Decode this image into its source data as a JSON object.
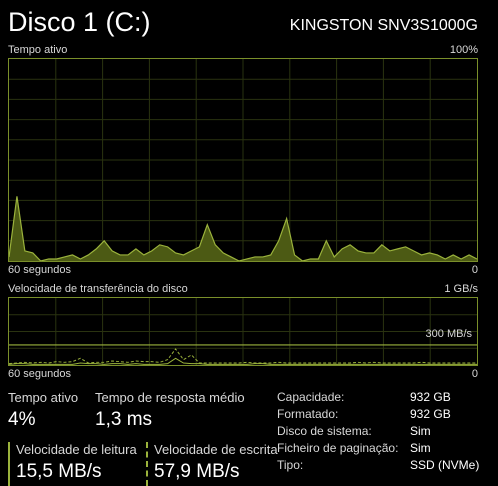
{
  "header": {
    "title": "Disco 1 (C:)",
    "model": "KINGSTON SNV3S1000G"
  },
  "active_time_graph": {
    "label": "Tempo ativo",
    "max_label": "100%",
    "time_label": "60 segundos",
    "min_label": "0",
    "line_color": "#9bb33c",
    "fill_color": "#4c5a14",
    "values": [
      2,
      32,
      5,
      4,
      0,
      1,
      1,
      2,
      3,
      1,
      3,
      6,
      10,
      5,
      3,
      3,
      6,
      3,
      5,
      8,
      7,
      4,
      3,
      5,
      7,
      18,
      8,
      4,
      2,
      0,
      1,
      2,
      2,
      3,
      10,
      21,
      3,
      0,
      1,
      1,
      10,
      2,
      6,
      8,
      5,
      4,
      4,
      8,
      5,
      6,
      7,
      5,
      3,
      4,
      3,
      1,
      3,
      1,
      3,
      1
    ]
  },
  "transfer_graph": {
    "label": "Velocidade de transferência do disco",
    "max_label": "1 GB/s",
    "reference_label": "300 MB/s",
    "reference_fraction": 0.3,
    "time_label": "60 segundos",
    "min_label": "0",
    "line_color": "#9bb33c",
    "read_values": [
      1,
      2,
      2,
      1,
      1,
      1,
      1,
      1,
      1,
      3,
      2,
      2,
      1,
      2,
      2,
      1,
      2,
      1,
      1,
      1,
      2,
      10,
      3,
      2,
      2,
      1,
      1,
      1,
      1,
      1,
      1,
      2,
      2,
      1,
      1,
      1,
      1,
      1,
      1,
      1,
      1,
      1,
      1,
      1,
      1,
      1,
      1,
      1,
      1,
      1,
      1,
      1,
      1,
      1,
      1,
      1,
      1,
      1,
      1,
      1
    ],
    "write_values": [
      2,
      3,
      4,
      3,
      4,
      3,
      5,
      4,
      5,
      10,
      3,
      4,
      4,
      6,
      5,
      4,
      6,
      5,
      5,
      4,
      8,
      24,
      8,
      15,
      3,
      3,
      3,
      3,
      3,
      3,
      4,
      3,
      3,
      3,
      4,
      3,
      3,
      3,
      3,
      3,
      3,
      3,
      3,
      3,
      4,
      3,
      4,
      3,
      3,
      3,
      3,
      3,
      4,
      3,
      3,
      3,
      3,
      3,
      3,
      3
    ]
  },
  "stats": {
    "active_time_label": "Tempo ativo",
    "active_time_value": "4%",
    "response_time_label": "Tempo de resposta médio",
    "response_time_value": "1,3 ms",
    "read_speed_label": "Velocidade de leitura",
    "read_speed_value": "15,5 MB/s",
    "write_speed_label": "Velocidade de escrita",
    "write_speed_value": "57,9 MB/s"
  },
  "properties": [
    {
      "label": "Capacidade:",
      "value": "932 GB"
    },
    {
      "label": "Formatado:",
      "value": "932 GB"
    },
    {
      "label": "Disco de sistema:",
      "value": "Sim"
    },
    {
      "label": "Ficheiro de paginação:",
      "value": "Sim"
    },
    {
      "label": "Tipo:",
      "value": "SSD (NVMe)"
    }
  ]
}
